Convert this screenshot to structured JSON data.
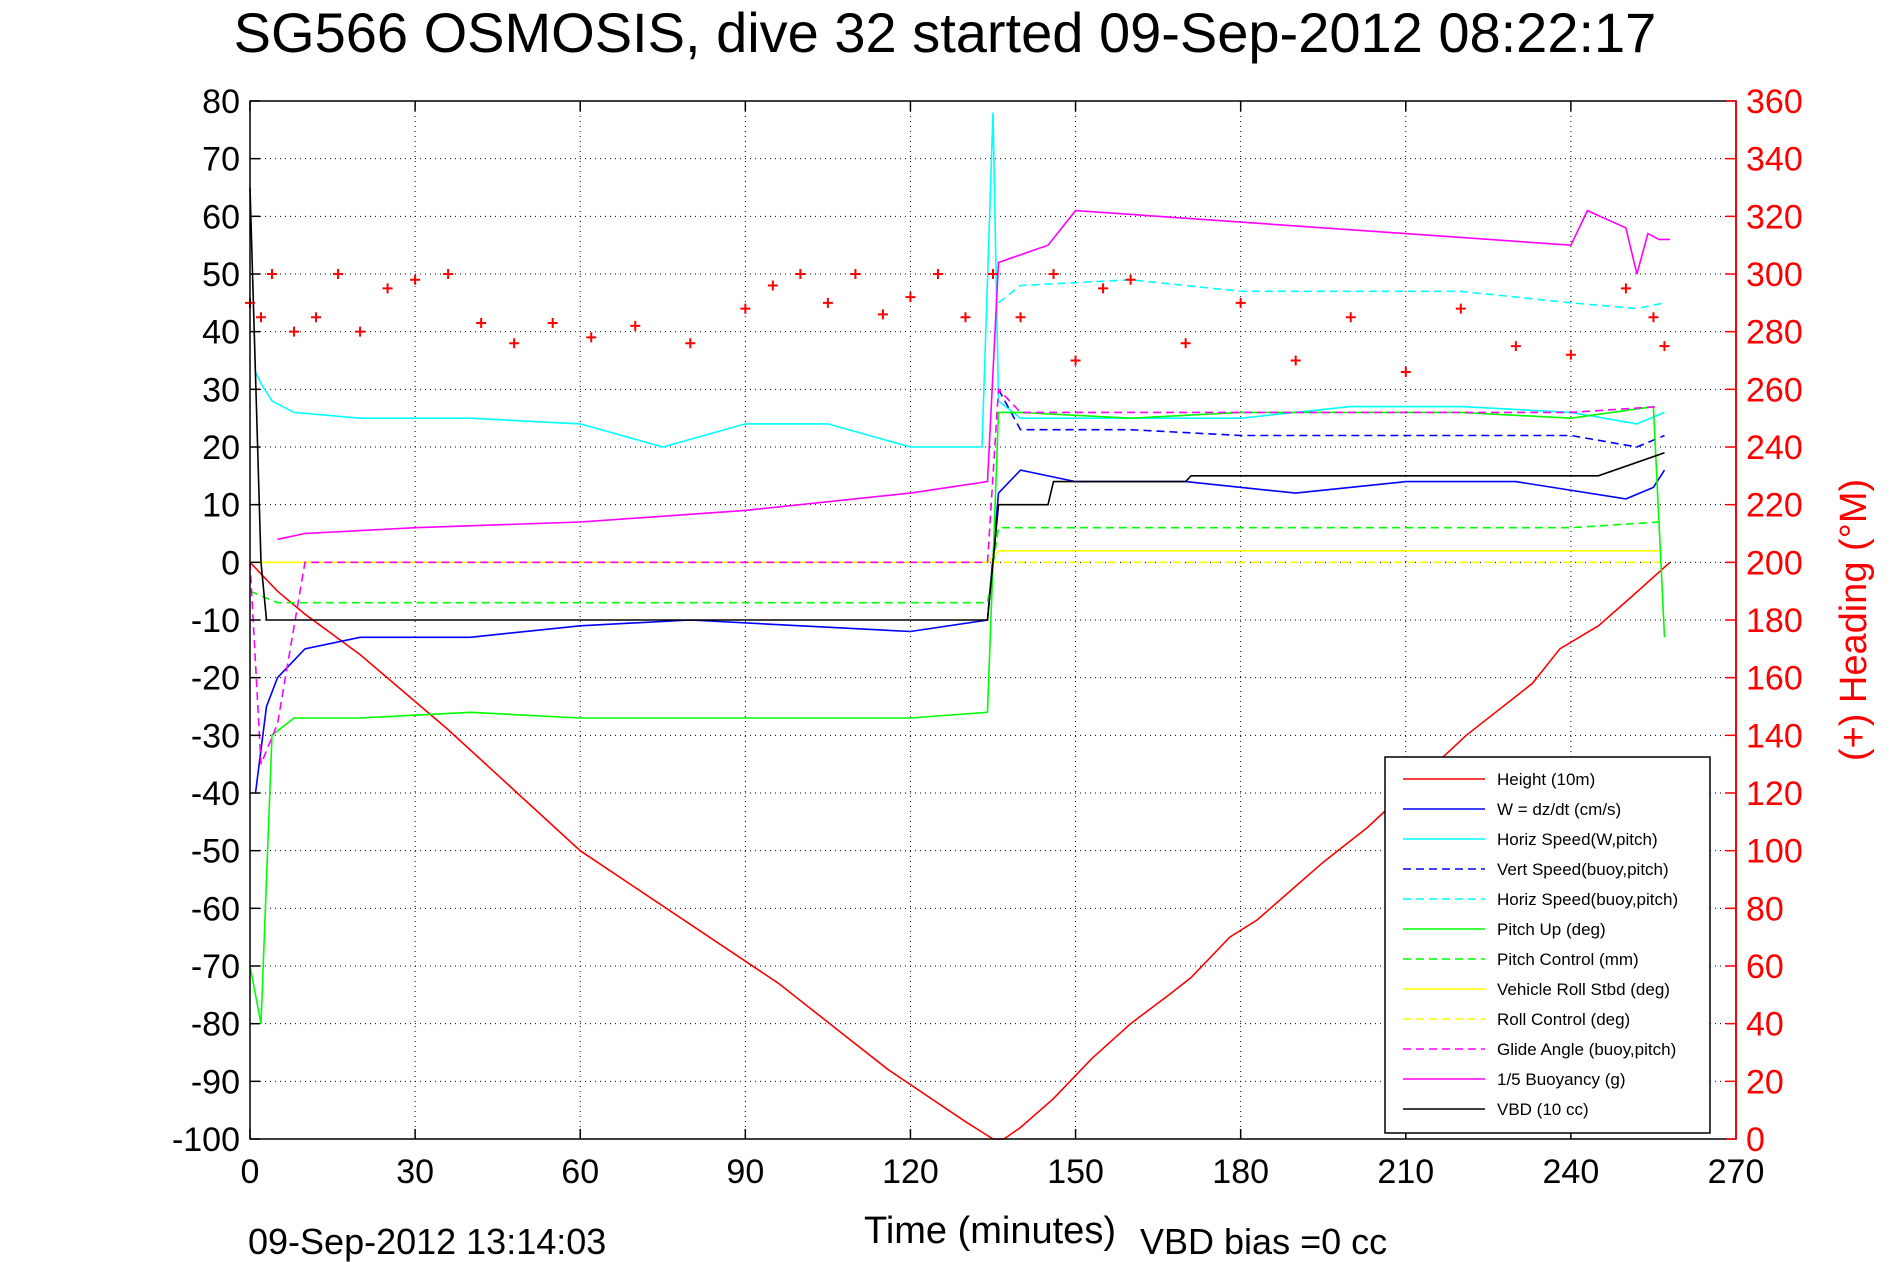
{
  "title": "SG566 OSMOSIS, dive 32 started 09-Sep-2012 08:22:17",
  "footer": {
    "timestamp": "09-Sep-2012 13:14:03",
    "vbd_bias": "VBD bias =0 cc"
  },
  "chart_data": {
    "type": "line",
    "title": "SG566 OSMOSIS, dive 32 started 09-Sep-2012 08:22:17",
    "xlabel": "Time (minutes)",
    "ylabel": "",
    "ylabel_right": "(+) Heading (°M)",
    "xlim": [
      0,
      270
    ],
    "ylim": [
      -100,
      80
    ],
    "ylim_right": [
      0,
      360
    ],
    "x_ticks": [
      "0",
      "30",
      "60",
      "90",
      "120",
      "150",
      "180",
      "210",
      "240",
      "270"
    ],
    "y_ticks": [
      "80",
      "70",
      "60",
      "50",
      "40",
      "30",
      "20",
      "10",
      "0",
      "-10",
      "-20",
      "-30",
      "-40",
      "-50",
      "-60",
      "-70",
      "-80",
      "-90",
      "-100"
    ],
    "y_ticks_right": [
      "360",
      "340",
      "320",
      "300",
      "280",
      "260",
      "240",
      "220",
      "200",
      "180",
      "160",
      "140",
      "120",
      "100",
      "80",
      "60",
      "40",
      "20",
      "0"
    ],
    "grid": true,
    "legend_position": "bottom-right",
    "series": [
      {
        "name": "Height (10m)",
        "color": "#ff0000",
        "style": "solid",
        "x": [
          0,
          2,
          5,
          10,
          20,
          36,
          60,
          96,
          104,
          108,
          116,
          130,
          135,
          137,
          140,
          146,
          153,
          160,
          167,
          171,
          178,
          183,
          195,
          203,
          221,
          233,
          238,
          245,
          251,
          258
        ],
        "y": [
          0,
          -2,
          -5,
          -9,
          -16,
          -29,
          -50,
          -73,
          -79,
          -82,
          -88,
          -97,
          -100,
          -100,
          -98,
          -93,
          -86,
          -80,
          -75,
          -72,
          -65,
          -62,
          -52,
          -46,
          -30,
          -21,
          -15,
          -11,
          -6,
          0
        ]
      },
      {
        "name": "W = dz/dt (cm/s)",
        "color": "#0000ff",
        "style": "solid",
        "x": [
          1,
          3,
          5,
          10,
          20,
          40,
          60,
          80,
          100,
          120,
          134,
          136,
          140,
          150,
          170,
          190,
          210,
          230,
          250,
          255,
          257
        ],
        "y": [
          -40,
          -25,
          -20,
          -15,
          -13,
          -13,
          -11,
          -10,
          -11,
          -12,
          -10,
          12,
          16,
          14,
          14,
          12,
          14,
          14,
          11,
          13,
          16
        ]
      },
      {
        "name": "Horiz Speed(W,pitch)",
        "color": "#00ffff",
        "style": "solid",
        "x": [
          1,
          2,
          4,
          8,
          20,
          40,
          60,
          75,
          90,
          105,
          120,
          133,
          135,
          136,
          140,
          160,
          180,
          200,
          220,
          240,
          252,
          257
        ],
        "y": [
          33,
          31,
          28,
          26,
          25,
          25,
          24,
          20,
          24,
          24,
          20,
          20,
          78,
          28,
          25,
          25,
          25,
          27,
          27,
          26,
          24,
          26
        ]
      },
      {
        "name": "Vert Speed(buoy,pitch)",
        "color": "#0000ff",
        "style": "dashed",
        "x": [
          136,
          140,
          160,
          180,
          200,
          220,
          240,
          252,
          257
        ],
        "y": [
          30,
          23,
          23,
          22,
          22,
          22,
          22,
          20,
          22
        ]
      },
      {
        "name": "Horiz Speed(buoy,pitch)",
        "color": "#00ffff",
        "style": "dashed",
        "x": [
          136,
          140,
          160,
          180,
          200,
          220,
          240,
          252,
          257
        ],
        "y": [
          45,
          48,
          49,
          47,
          47,
          47,
          45,
          44,
          45
        ]
      },
      {
        "name": "Pitch Up (deg)",
        "color": "#00ff00",
        "style": "solid",
        "x": [
          0,
          2,
          4,
          8,
          20,
          40,
          60,
          80,
          100,
          120,
          134,
          136,
          140,
          160,
          180,
          200,
          220,
          240,
          255,
          257
        ],
        "y": [
          -70,
          -80,
          -30,
          -27,
          -27,
          -26,
          -27,
          -27,
          -27,
          -27,
          -26,
          26,
          26,
          25,
          26,
          26,
          26,
          25,
          27,
          -13
        ]
      },
      {
        "name": "Pitch Control (mm)",
        "color": "#00ff00",
        "style": "dashed",
        "x": [
          0,
          5,
          10,
          30,
          60,
          90,
          120,
          134,
          136,
          145,
          160,
          180,
          200,
          220,
          240,
          256
        ],
        "y": [
          -5,
          -7,
          -7,
          -7,
          -7,
          -7,
          -7,
          -7,
          6,
          6,
          6,
          6,
          6,
          6,
          6,
          7
        ]
      },
      {
        "name": "Vehicle Roll Stbd (deg)",
        "color": "#ffff00",
        "style": "solid",
        "x": [
          0,
          5,
          20,
          40,
          60,
          90,
          120,
          134,
          136,
          140,
          160,
          180,
          200,
          220,
          240,
          256
        ],
        "y": [
          0,
          0,
          0,
          0,
          0,
          0,
          0,
          0,
          2,
          2,
          2,
          2,
          2,
          2,
          2,
          2
        ]
      },
      {
        "name": "Roll Control (deg)",
        "color": "#ffff00",
        "style": "dashed",
        "x": [
          0,
          20,
          40,
          60,
          90,
          120,
          134,
          136,
          160,
          200,
          256
        ],
        "y": [
          0,
          0,
          0,
          0,
          0,
          0,
          0,
          0,
          0,
          0,
          0
        ]
      },
      {
        "name": "Glide Angle (buoy,pitch)",
        "color": "#ff00ff",
        "style": "dashed",
        "x": [
          0,
          2,
          5,
          10,
          30,
          60,
          90,
          120,
          134,
          136,
          140,
          160,
          200,
          240,
          256
        ],
        "y": [
          0,
          -35,
          -28,
          0,
          0,
          0,
          0,
          0,
          0,
          30,
          26,
          26,
          26,
          26,
          27
        ]
      },
      {
        "name": "1/5 Buoyancy (g)",
        "color": "#ff00ff",
        "style": "solid",
        "x": [
          5,
          10,
          30,
          60,
          90,
          120,
          134,
          136,
          145,
          150,
          180,
          210,
          240,
          243,
          250,
          252,
          254,
          256,
          258
        ],
        "y": [
          4,
          5,
          6,
          7,
          9,
          12,
          14,
          52,
          55,
          61,
          59,
          57,
          55,
          61,
          58,
          50,
          57,
          56,
          56
        ]
      },
      {
        "name": "VBD (10 cc)",
        "color": "#000000",
        "style": "solid",
        "x": [
          0,
          2,
          3,
          10,
          60,
          134,
          136,
          145,
          146,
          170,
          171,
          205,
          245,
          257
        ],
        "y": [
          65,
          0,
          -10,
          -10,
          -10,
          -10,
          10,
          10,
          14,
          14,
          15,
          15,
          15,
          19
        ]
      },
      {
        "name": "Heading",
        "color": "#ff0000",
        "style": "markers-plus",
        "axis": "right",
        "x": [
          0,
          2,
          4,
          8,
          12,
          16,
          20,
          25,
          30,
          36,
          42,
          48,
          55,
          62,
          70,
          80,
          90,
          95,
          100,
          105,
          110,
          115,
          120,
          125,
          130,
          135,
          140,
          146,
          150,
          155,
          160,
          170,
          180,
          190,
          200,
          210,
          220,
          230,
          240,
          250,
          255,
          257
        ],
        "y": [
          290,
          285,
          300,
          280,
          285,
          300,
          280,
          295,
          298,
          300,
          283,
          276,
          283,
          278,
          282,
          276,
          288,
          296,
          300,
          290,
          300,
          286,
          292,
          300,
          285,
          300,
          285,
          300,
          270,
          295,
          298,
          276,
          290,
          270,
          285,
          266,
          288,
          275,
          272,
          295,
          285,
          275
        ]
      }
    ]
  }
}
